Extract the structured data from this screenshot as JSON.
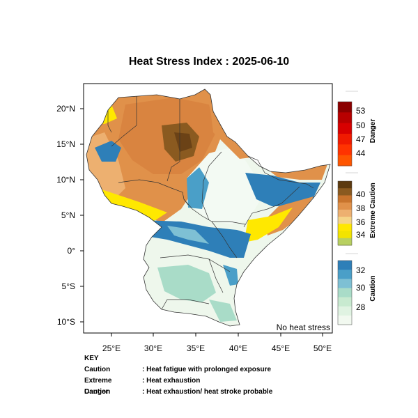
{
  "title": "Heat Stress Index : 2025-06-10",
  "map": {
    "lon_ticks": [
      "25°E",
      "30°E",
      "35°E",
      "40°E",
      "45°E",
      "50°E"
    ],
    "lat_ticks": [
      "20°N",
      "15°N",
      "10°N",
      "5°N",
      "0°",
      "5°S",
      "10°S"
    ],
    "lon_range": [
      22,
      51.5
    ],
    "lat_range": [
      -12,
      23.5
    ],
    "no_stress_label": "No heat stress"
  },
  "colorbars": {
    "danger": {
      "title": "Danger",
      "labels": [
        "53",
        "50",
        "47",
        "44"
      ],
      "colors": [
        "#8b0000",
        "#b80000",
        "#d80000",
        "#f01a00",
        "#ff3300",
        "#ff5500"
      ]
    },
    "extreme_caution": {
      "title": "Extreme Caution",
      "labels": [
        "40",
        "38",
        "36",
        "34"
      ],
      "colors": [
        "#5c3a10",
        "#8a5a20",
        "#c8742d",
        "#e0914a",
        "#edb070",
        "#f5d488",
        "#ffe800",
        "#f2e400",
        "#b8d060"
      ]
    },
    "caution": {
      "title": "Caution",
      "labels": [
        "32",
        "30",
        "28"
      ],
      "colors": [
        "#2e7fb8",
        "#4a9fc8",
        "#7ec0d4",
        "#a9dcc8",
        "#c8ead0",
        "#e0f3e2",
        "#f2f9f0"
      ]
    }
  },
  "key": {
    "heading": "KEY",
    "rows": [
      {
        "term": "Caution",
        "desc": "Heat fatigue with prolonged exposure"
      },
      {
        "term": "Extreme Caution",
        "desc": "Heat exhaustion"
      },
      {
        "term": "Danger",
        "desc": "Heat exhaustion/ heat stroke probable"
      }
    ]
  },
  "palette": {
    "orange": "#e0914a",
    "light_orange": "#edb070",
    "dark_brown": "#8a5a20",
    "yellow": "#ffe800",
    "blue": "#2e7fb8",
    "light_teal": "#a9dcc8",
    "pale": "#eef7ec"
  }
}
